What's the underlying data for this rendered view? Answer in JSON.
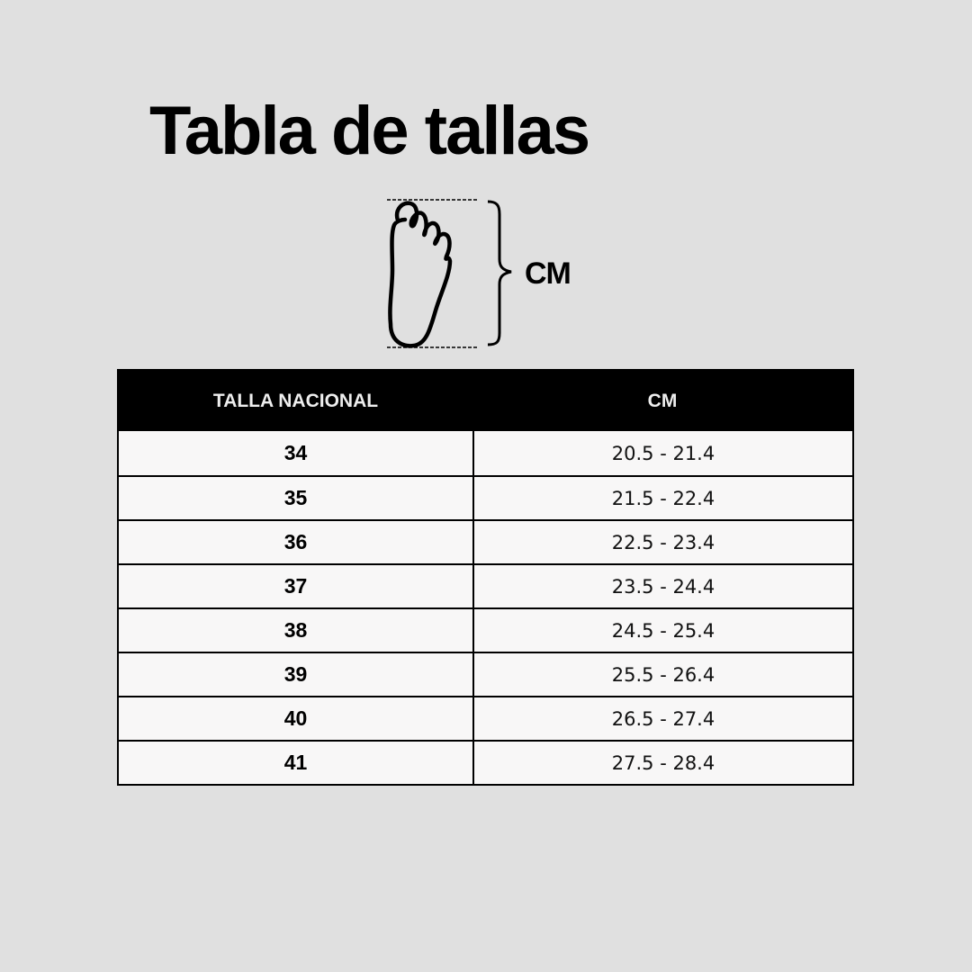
{
  "title": "Tabla de tallas",
  "diagram": {
    "icon": "foot-icon",
    "measure_label": "CM"
  },
  "table": {
    "headers": [
      "TALLA NACIONAL",
      "CM"
    ],
    "rows": [
      {
        "size": "34",
        "cm": "20.5 - 21.4"
      },
      {
        "size": "35",
        "cm": "21.5 - 22.4"
      },
      {
        "size": "36",
        "cm": "22.5 - 23.4"
      },
      {
        "size": "37",
        "cm": "23.5 - 24.4"
      },
      {
        "size": "38",
        "cm": "24.5 - 25.4"
      },
      {
        "size": "39",
        "cm": "25.5 - 26.4"
      },
      {
        "size": "40",
        "cm": "26.5 - 27.4"
      },
      {
        "size": "41",
        "cm": "27.5 - 28.4"
      }
    ]
  },
  "colors": {
    "background": "#e0e0e0",
    "header_bg": "#000000",
    "cell_bg": "#f8f7f7"
  }
}
